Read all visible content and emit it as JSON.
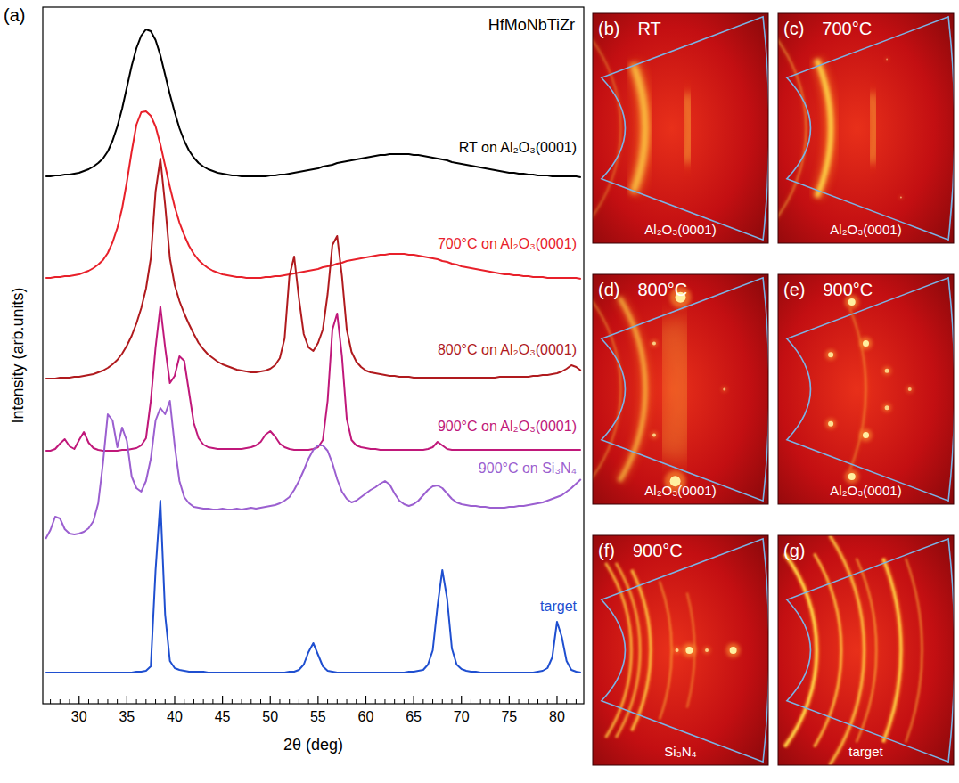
{
  "chart_data": {
    "type": "line",
    "letter": "(a)",
    "title": "HfMoNbTiZr",
    "x_label": "2θ (deg)",
    "y_label": "Intensity (arb.units)",
    "xlim": [
      26.2,
      82.8
    ],
    "xticks": [
      30,
      35,
      40,
      45,
      50,
      55,
      60,
      65,
      70,
      75,
      80
    ],
    "ylim": [
      0,
      782
    ],
    "tick_labels": "x",
    "grid": false,
    "x": [
      26.5,
      27,
      27.5,
      28,
      28.5,
      29,
      29.5,
      30,
      30.5,
      31,
      31.5,
      32,
      32.5,
      33,
      33.5,
      34,
      34.5,
      35,
      35.5,
      36,
      36.5,
      37,
      37.5,
      38,
      38.5,
      39,
      39.5,
      40,
      40.5,
      41,
      41.5,
      42,
      42.5,
      43,
      43.5,
      44,
      44.5,
      45,
      45.5,
      46,
      46.5,
      47,
      47.5,
      48,
      48.5,
      49,
      49.5,
      50,
      50.5,
      51,
      51.5,
      52,
      52.5,
      53,
      53.5,
      54,
      54.5,
      55,
      55.5,
      56,
      56.5,
      57,
      57.5,
      58,
      58.5,
      59,
      59.5,
      60,
      60.5,
      61,
      61.5,
      62,
      62.5,
      63,
      63.5,
      64,
      64.5,
      65,
      65.5,
      66,
      66.5,
      67,
      67.5,
      68,
      68.5,
      69,
      69.5,
      70,
      70.5,
      71,
      71.5,
      72,
      72.5,
      73,
      73.5,
      74,
      74.5,
      75,
      75.5,
      76,
      76.5,
      77,
      77.5,
      78,
      78.5,
      79,
      79.5,
      80,
      80.5,
      81,
      81.5,
      82,
      82.5
    ],
    "series": [
      {
        "name": "RT on Al₂O₃(0001)",
        "color": "#000000",
        "values": [
          592,
          592,
          593,
          593,
          594,
          594,
          595,
          596,
          598,
          600,
          603,
          607,
          612,
          620,
          632,
          648,
          668,
          692,
          716,
          736,
          750,
          757,
          755,
          745,
          728,
          706,
          684,
          664,
          646,
          632,
          621,
          613,
          607,
          603,
          600,
          598,
          596,
          595,
          594,
          593,
          593,
          592,
          592,
          592,
          592,
          592,
          592,
          593,
          593,
          594,
          594,
          595,
          596,
          597,
          598,
          599,
          600,
          601,
          603,
          604,
          605,
          607,
          608,
          609,
          610,
          611,
          612,
          613,
          614,
          615,
          616,
          616,
          617,
          617,
          617,
          617,
          617,
          616,
          616,
          615,
          614,
          613,
          612,
          611,
          610,
          608,
          607,
          606,
          605,
          604,
          603,
          602,
          601,
          600,
          599,
          598,
          597,
          596,
          596,
          595,
          595,
          594,
          594,
          593,
          593,
          593,
          592,
          592,
          592,
          592,
          592,
          592,
          591
        ]
      },
      {
        "name": "700°C on Al₂O₃(0001)",
        "color": "#e8202a",
        "values": [
          478,
          478,
          479,
          479,
          480,
          480,
          481,
          482,
          484,
          486,
          489,
          493,
          498,
          506,
          518,
          534,
          556,
          586,
          620,
          650,
          664,
          665,
          660,
          648,
          628,
          604,
          580,
          558,
          540,
          526,
          514,
          505,
          498,
          493,
          489,
          486,
          484,
          482,
          481,
          480,
          479,
          479,
          478,
          478,
          478,
          478,
          479,
          479,
          480,
          480,
          481,
          482,
          483,
          484,
          485,
          486,
          487,
          488,
          490,
          491,
          492,
          494,
          495,
          497,
          498,
          499,
          500,
          501,
          502,
          503,
          504,
          504,
          505,
          505,
          505,
          505,
          504,
          504,
          503,
          502,
          501,
          500,
          499,
          497,
          496,
          494,
          493,
          491,
          490,
          489,
          488,
          487,
          486,
          485,
          484,
          483,
          482,
          482,
          481,
          481,
          480,
          480,
          479,
          479,
          479,
          478,
          478,
          478,
          478,
          478,
          478,
          478,
          477
        ]
      },
      {
        "name": "800°C on Al₂O₃(0001)",
        "color": "#b01a1e",
        "values": [
          365,
          365,
          365,
          366,
          366,
          366,
          367,
          367,
          368,
          369,
          370,
          372,
          374,
          377,
          381,
          386,
          393,
          402,
          413,
          427,
          444,
          466,
          500,
          575,
          612,
          560,
          500,
          470,
          452,
          438,
          426,
          415,
          405,
          398,
          392,
          388,
          384,
          381,
          379,
          377,
          375,
          374,
          373,
          372,
          372,
          373,
          374,
          376,
          380,
          388,
          410,
          480,
          502,
          455,
          415,
          400,
          396,
          405,
          420,
          460,
          515,
          525,
          480,
          420,
          395,
          384,
          378,
          374,
          372,
          371,
          370,
          369,
          368,
          368,
          367,
          367,
          367,
          366,
          366,
          366,
          366,
          366,
          366,
          366,
          366,
          366,
          366,
          366,
          366,
          366,
          366,
          366,
          366,
          366,
          366,
          367,
          367,
          367,
          367,
          367,
          367,
          367,
          368,
          368,
          369,
          369,
          370,
          371,
          373,
          376,
          380,
          378,
          374
        ]
      },
      {
        "name": "900°C on Al₂O₃(0001)",
        "color": "#c0187a",
        "values": [
          284,
          284,
          286,
          292,
          297,
          289,
          286,
          296,
          305,
          293,
          287,
          285,
          284,
          284,
          284,
          284,
          285,
          285,
          286,
          287,
          290,
          298,
          340,
          400,
          446,
          400,
          360,
          368,
          390,
          385,
          350,
          315,
          298,
          291,
          288,
          287,
          286,
          286,
          286,
          286,
          286,
          286,
          287,
          288,
          290,
          294,
          302,
          306,
          300,
          292,
          288,
          286,
          285,
          285,
          285,
          285,
          286,
          288,
          296,
          340,
          420,
          438,
          390,
          320,
          296,
          290,
          288,
          287,
          286,
          286,
          285,
          285,
          285,
          285,
          285,
          285,
          285,
          285,
          285,
          285,
          286,
          288,
          294,
          290,
          286,
          285,
          285,
          285,
          285,
          285,
          285,
          285,
          285,
          285,
          285,
          285,
          285,
          285,
          285,
          285,
          285,
          285,
          285,
          285,
          285,
          285,
          285,
          285,
          285,
          285,
          285,
          285,
          285
        ]
      },
      {
        "name": "900°C on Si₃N₄",
        "color": "#9b5fd0",
        "values": [
          185,
          195,
          210,
          208,
          196,
          191,
          190,
          191,
          193,
          197,
          205,
          225,
          270,
          325,
          318,
          288,
          310,
          295,
          255,
          242,
          238,
          250,
          275,
          318,
          332,
          325,
          340,
          290,
          250,
          232,
          225,
          221,
          220,
          219,
          219,
          218,
          218,
          219,
          218,
          218,
          219,
          218,
          219,
          220,
          219,
          220,
          221,
          222,
          223,
          225,
          228,
          232,
          240,
          250,
          262,
          275,
          285,
          290,
          290,
          284,
          270,
          252,
          238,
          230,
          226,
          228,
          232,
          236,
          240,
          243,
          247,
          250,
          246,
          236,
          228,
          224,
          222,
          224,
          228,
          234,
          240,
          244,
          245,
          242,
          236,
          230,
          226,
          224,
          223,
          222,
          222,
          221,
          221,
          220,
          220,
          220,
          220,
          221,
          221,
          222,
          222,
          223,
          224,
          225,
          226,
          228,
          230,
          232,
          234,
          238,
          242,
          247,
          252
        ]
      },
      {
        "name": "target",
        "color": "#1f4fd0",
        "values": [
          35,
          35,
          35,
          35,
          35,
          35,
          35,
          35,
          35,
          35,
          35,
          35,
          35,
          35,
          35,
          35,
          35,
          35,
          35,
          36,
          36,
          37,
          42,
          150,
          228,
          100,
          48,
          40,
          38,
          37,
          36,
          36,
          36,
          36,
          35,
          35,
          35,
          35,
          35,
          35,
          35,
          35,
          35,
          35,
          35,
          35,
          35,
          35,
          35,
          35,
          35,
          36,
          36,
          38,
          44,
          58,
          68,
          55,
          42,
          37,
          36,
          35,
          35,
          35,
          35,
          35,
          35,
          35,
          35,
          35,
          35,
          35,
          35,
          35,
          35,
          35,
          36,
          36,
          37,
          38,
          44,
          60,
          110,
          150,
          118,
          62,
          44,
          39,
          37,
          36,
          36,
          35,
          35,
          35,
          35,
          35,
          35,
          35,
          35,
          35,
          35,
          35,
          35,
          36,
          37,
          40,
          52,
          92,
          75,
          48,
          38,
          36,
          35
        ]
      }
    ]
  },
  "panels": [
    {
      "letter": "(b)",
      "title": "RT",
      "substrate": "Al₂O₃(0001)"
    },
    {
      "letter": "(c)",
      "title": "700°C",
      "substrate": "Al₂O₃(0001)"
    },
    {
      "letter": "(d)",
      "title": "800°C",
      "substrate": "Al₂O₃(0001)"
    },
    {
      "letter": "(e)",
      "title": "900°C",
      "substrate": "Al₂O₃(0001)"
    },
    {
      "letter": "(f)",
      "title": "900°C",
      "substrate": "Si₃N₄"
    },
    {
      "letter": "(g)",
      "substrate": "target"
    }
  ]
}
